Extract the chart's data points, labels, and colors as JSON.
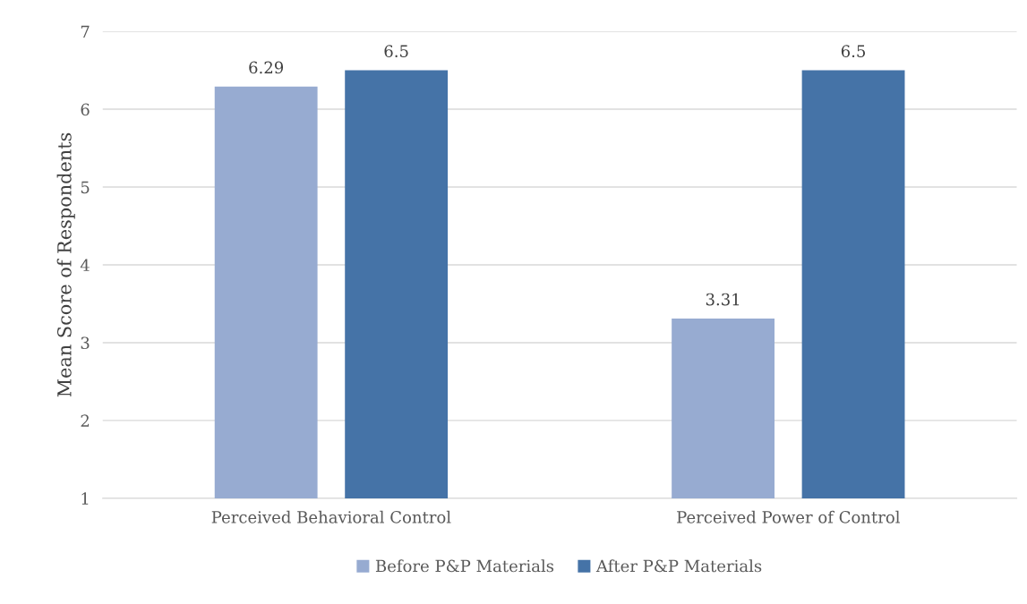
{
  "chart_data": {
    "type": "bar",
    "ylabel": "Mean Score of Respondents",
    "categories": [
      "Perceived Behavioral Control",
      "Perceived Power of Control"
    ],
    "series": [
      {
        "name": "Before P&P Materials",
        "color": "#97abd1",
        "values": [
          6.29,
          3.31
        ]
      },
      {
        "name": "After P&P Materials",
        "color": "#4573a7",
        "values": [
          6.5,
          6.5
        ]
      }
    ],
    "ylim": [
      1,
      7
    ],
    "yticks": [
      1,
      2,
      3,
      4,
      5,
      6,
      7
    ],
    "grid": "y",
    "legend": "bottom",
    "data_labels": true
  }
}
